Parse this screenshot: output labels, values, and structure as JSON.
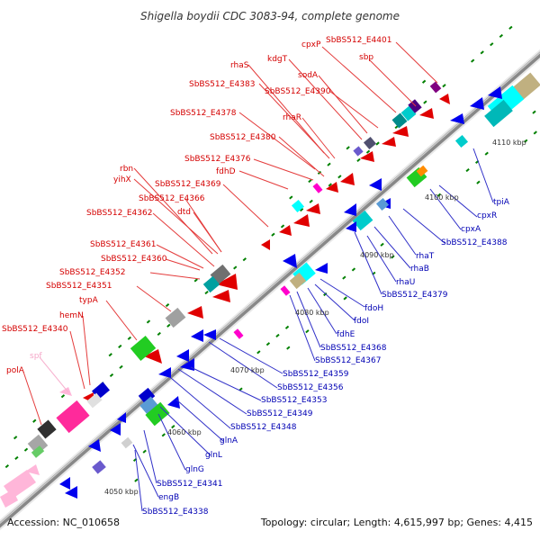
{
  "title": "Shigella boydii CDC 3083-94, complete genome",
  "footer": {
    "accession": "Accession: NC_010658",
    "summary": "Topology: circular; Length: 4,615,997 bp; Genes: 4,415"
  },
  "ticks": [
    "4050 kbp",
    "4060 kbp",
    "4070 kbp",
    "4080 kbp",
    "4090 kbp",
    "4100 kbp",
    "4110 kbp"
  ],
  "labels_top": [
    "SbBS512_E4401",
    "cpxP",
    "sbp",
    "kdgT",
    "sodA",
    "SbBS512_E4390",
    "rhaS",
    "SbBS512_E4383",
    "rhaR",
    "SbBS512_E4378",
    "SbBS512_E4380",
    "SbBS512_E4376",
    "fdhD",
    "rbn",
    "yihX",
    "SbBS512_E4369",
    "SbBS512_E4366",
    "dtd",
    "SbBS512_E4362",
    "SbBS512_E4361",
    "SbBS512_E4360",
    "SbBS512_E4352",
    "SbBS512_E4351",
    "typA",
    "hemN",
    "SbBS512_E4340",
    "spf",
    "polA"
  ],
  "labels_bottom": [
    "tpiA",
    "cpxR",
    "cpxA",
    "SbBS512_E4388",
    "rhaT",
    "rhaB",
    "rhaU",
    "SbBS512_E4379",
    "fdoH",
    "fdoI",
    "fdhE",
    "SbBS512_E4368",
    "SbBS512_E4367",
    "SbBS512_E4359",
    "SbBS512_E4356",
    "SbBS512_E4353",
    "SbBS512_E4349",
    "SbBS512_E4348",
    "glnA",
    "glnL",
    "glnG",
    "SbBS512_E4341",
    "engB",
    "SbBS512_E4338"
  ],
  "colors": {
    "forward_gene": "#ff0000",
    "reverse_gene": "#0000ff",
    "backbone": "#808080",
    "gc_marker": "#008000",
    "label_forward": "#d40000",
    "label_reverse": "#0000b4",
    "pseudogene": "#ffb6c1"
  }
}
